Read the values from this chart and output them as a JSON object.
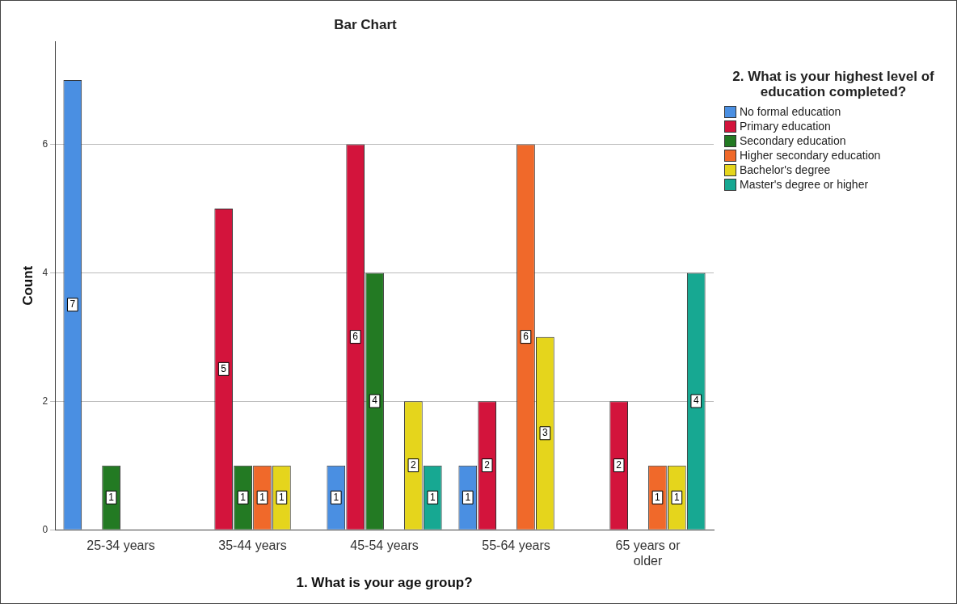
{
  "chart_data": {
    "type": "bar",
    "title": "Bar Chart",
    "xlabel": "1. What is your age group?",
    "ylabel": "Count",
    "legend_title": "2. What is your highest level of education completed?",
    "categories": [
      "25-34 years",
      "35-44 years",
      "45-54 years",
      "55-64 years",
      "65 years or older"
    ],
    "series": [
      {
        "name": "No formal education",
        "color": "#4a8fe2",
        "values": [
          7,
          null,
          1,
          1,
          null
        ]
      },
      {
        "name": "Primary education",
        "color": "#d3143c",
        "values": [
          null,
          5,
          6,
          2,
          2
        ]
      },
      {
        "name": "Secondary education",
        "color": "#237a23",
        "values": [
          1,
          1,
          4,
          null,
          null
        ]
      },
      {
        "name": "Higher secondary education",
        "color": "#f0692a",
        "values": [
          null,
          1,
          null,
          6,
          1
        ]
      },
      {
        "name": "Bachelor's degree",
        "color": "#e5d51c",
        "values": [
          null,
          1,
          2,
          3,
          1
        ]
      },
      {
        "name": "Master's degree or higher",
        "color": "#17a892",
        "values": [
          null,
          null,
          1,
          null,
          4
        ]
      }
    ],
    "ylim": [
      0,
      7.6
    ],
    "yticks": [
      0,
      2,
      4,
      6
    ],
    "grid": "y",
    "legend": "right",
    "data_labels": true
  }
}
